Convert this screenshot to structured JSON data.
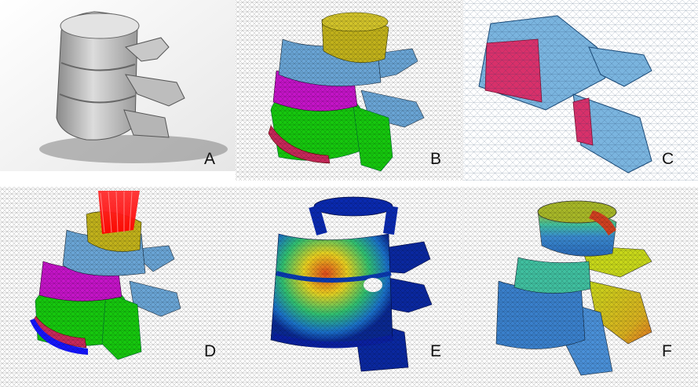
{
  "panels": [
    {
      "label": "A"
    },
    {
      "label": "B"
    },
    {
      "label": "C"
    },
    {
      "label": "D"
    },
    {
      "label": "E"
    },
    {
      "label": "F"
    }
  ],
  "colors": {
    "bone_gray": "#b9b9b9",
    "cortical_blue": "#6aa5d6",
    "endplate_yellow": "#c2b21b",
    "nucleus_magenta": "#c514c8",
    "annulus_green": "#16c80e",
    "endplate_red": "#c8285a",
    "load_red": "#ff1a1a",
    "fix_blue": "#1515ff",
    "stress_low": "#08208c",
    "stress_mid": "#20c080",
    "stress_high": "#e05020"
  },
  "icons": [
    "vertebra-cad-icon",
    "mesh-icon",
    "load-arrows-icon",
    "fixed-support-icon"
  ]
}
